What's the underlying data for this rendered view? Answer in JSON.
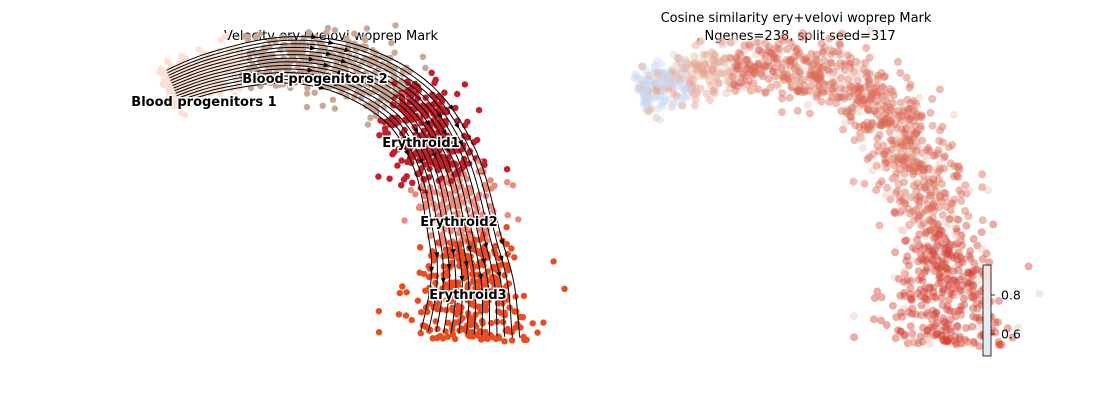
{
  "chart_data": [
    {
      "type": "scatter",
      "title": "Velocity ery+velovi woprep Mark",
      "style": "embedding scatter with velocity streamlines",
      "legend_placement": "on data",
      "clusters": [
        {
          "name": "Blood progenitors 1",
          "color": "#fbe0d3"
        },
        {
          "name": "Blood progenitors 2",
          "color": "#c9a898"
        },
        {
          "name": "Erythroid1",
          "color": "#c21f2b"
        },
        {
          "name": "Erythroid2",
          "color": "#f08a78"
        },
        {
          "name": "Erythroid3",
          "color": "#ea4c22"
        }
      ],
      "stream_color": "#000000",
      "axes_visible": false
    },
    {
      "type": "scatter",
      "title_line1": "Cosine similarity ery+velovi woprep Mark",
      "title_line2": ", Ngenes=238, split seed=317",
      "style": "embedding scatter colored by cosine similarity",
      "colorbar": {
        "ticks": [
          "0.6",
          "0.8"
        ],
        "range": [
          0.48,
          0.96
        ],
        "colormap": "coolwarm (upper half)"
      },
      "axes_visible": false
    }
  ]
}
